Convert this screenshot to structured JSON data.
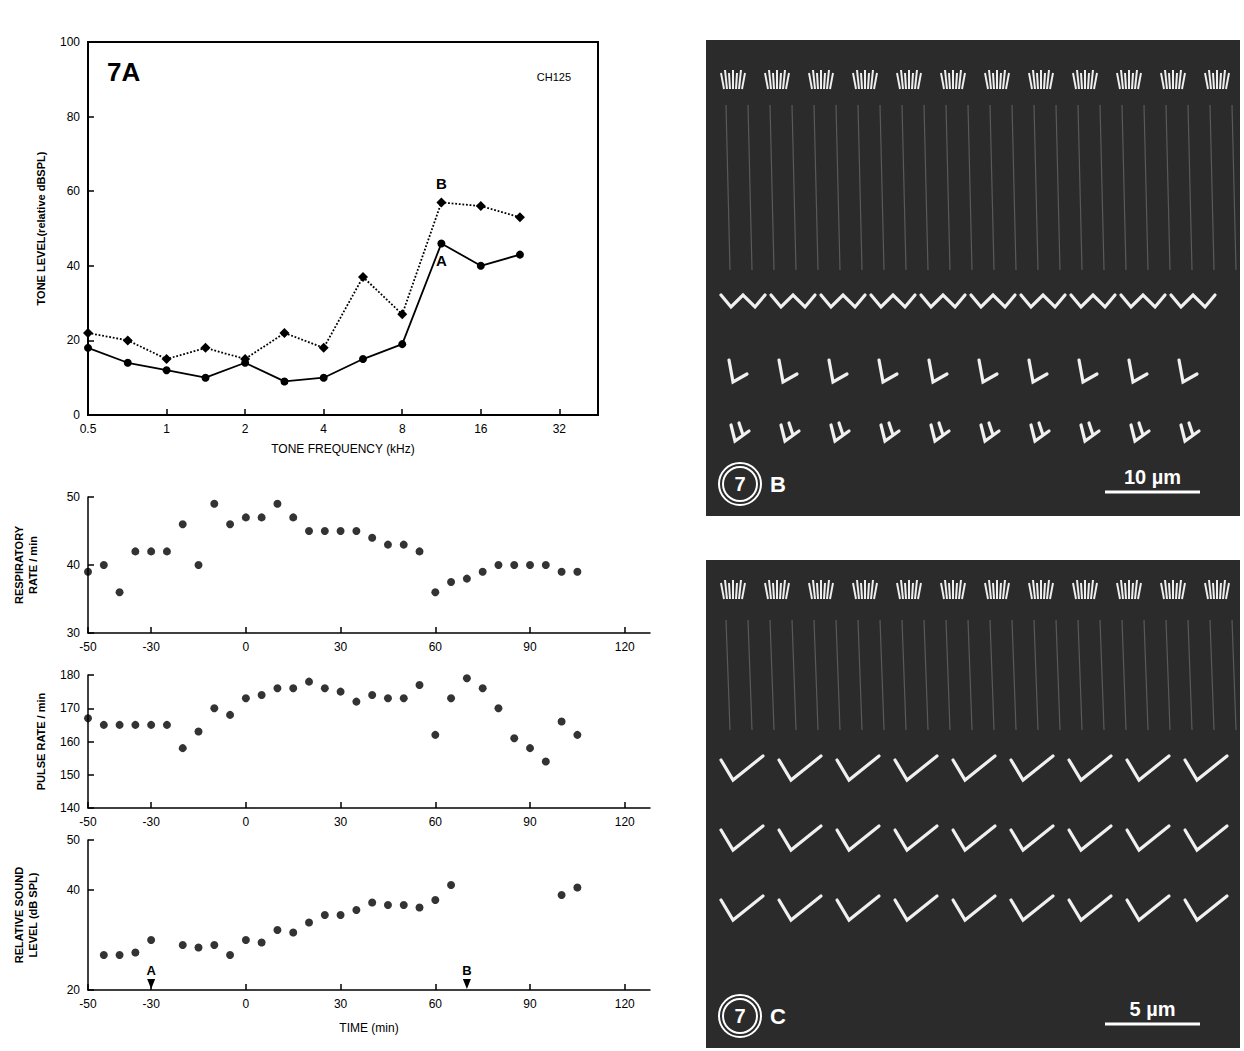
{
  "chart_data": [
    {
      "type": "line",
      "title": "7A",
      "subtitle": "CH125",
      "x_label": "TONE FREQUENCY (kHz)",
      "y_label": "TONE LEVEL(relative dBSPL)",
      "log": "x",
      "grid": false,
      "xlim": [
        0.5,
        45
      ],
      "xticks": [
        0.5,
        1,
        2,
        4,
        8,
        16,
        32
      ],
      "ylim": [
        0,
        100
      ],
      "yticks": [
        0,
        20,
        40,
        60,
        80,
        100
      ],
      "x": [
        0.5,
        0.71,
        1,
        1.41,
        2,
        2.83,
        4,
        5.66,
        8,
        11.3,
        16,
        22.6
      ],
      "series": [
        {
          "name": "A",
          "color": "#000000",
          "marker": "circle",
          "line_style": "solid",
          "values": [
            18,
            14,
            12,
            10,
            14,
            9,
            10,
            15,
            19,
            46,
            40,
            43
          ]
        },
        {
          "name": "B",
          "color": "#000000",
          "marker": "diamond",
          "line_style": "dotted",
          "values": [
            22,
            20,
            15,
            18,
            15,
            22,
            18,
            37,
            27,
            57,
            56,
            53
          ]
        }
      ]
    },
    {
      "type": "scatter",
      "y_label": "RESPIRATORY RATE / min",
      "grid": false,
      "xlim": [
        -50,
        128
      ],
      "xticks": [
        -50,
        -30,
        0,
        30,
        60,
        90,
        120
      ],
      "ylim": [
        30,
        50
      ],
      "yticks": [
        30,
        40,
        50
      ],
      "color": "#000000",
      "marker": "circle",
      "x": [
        -50,
        -45,
        -40,
        -35,
        -30,
        -25,
        -20,
        -15,
        -10,
        -5,
        0,
        5,
        10,
        15,
        20,
        25,
        30,
        35,
        40,
        45,
        50,
        55,
        60,
        65,
        70,
        75,
        80,
        85,
        90,
        95,
        100,
        105
      ],
      "values": [
        39,
        40,
        36,
        42,
        42,
        42,
        46,
        40,
        49,
        46,
        47,
        47,
        49,
        47,
        45,
        45,
        45,
        45,
        44,
        43,
        43,
        42,
        36,
        37.5,
        38,
        39,
        40,
        40,
        40,
        40,
        39,
        39
      ]
    },
    {
      "type": "scatter",
      "y_label": "PULSE RATE / min",
      "grid": false,
      "xlim": [
        -50,
        128
      ],
      "xticks": [
        -50,
        -30,
        0,
        30,
        60,
        90,
        120
      ],
      "ylim": [
        140,
        180
      ],
      "yticks": [
        140,
        150,
        160,
        170,
        180
      ],
      "color": "#000000",
      "marker": "circle",
      "x": [
        -50,
        -45,
        -40,
        -35,
        -30,
        -25,
        -20,
        -15,
        -10,
        -5,
        0,
        5,
        10,
        15,
        20,
        25,
        30,
        35,
        40,
        45,
        50,
        55,
        60,
        65,
        70,
        75,
        80,
        85,
        90,
        95,
        100,
        105
      ],
      "values": [
        167,
        165,
        165,
        165,
        165,
        165,
        158,
        163,
        170,
        168,
        173,
        174,
        176,
        176,
        178,
        176,
        175,
        172,
        174,
        173,
        173,
        177,
        162,
        173,
        179,
        176,
        170,
        161,
        158,
        154,
        166,
        162
      ]
    },
    {
      "type": "scatter",
      "x_label": "TIME (min)",
      "y_label": "RELATIVE SOUND LEVEL (dB SPL)",
      "grid": false,
      "xlim": [
        -50,
        128
      ],
      "xticks": [
        -50,
        -30,
        0,
        30,
        60,
        90,
        120
      ],
      "ylim": [
        20,
        50
      ],
      "yticks": [
        20,
        40,
        50
      ],
      "color": "#000000",
      "marker": "circle",
      "x": [
        -45,
        -40,
        -35,
        -30,
        -20,
        -15,
        -10,
        -5,
        0,
        5,
        10,
        15,
        20,
        25,
        30,
        35,
        40,
        45,
        50,
        55,
        60,
        65,
        100,
        105
      ],
      "values": [
        27,
        27,
        27.5,
        30,
        29,
        28.5,
        29,
        27,
        30,
        29.5,
        32,
        31.5,
        33.5,
        35,
        35,
        36,
        37.5,
        37,
        37,
        36.5,
        38,
        41,
        39,
        40.5
      ],
      "annotations": [
        {
          "text": "A",
          "x": -30
        },
        {
          "text": "B",
          "x": 70
        }
      ]
    }
  ],
  "micrographs": [
    {
      "figure": "7",
      "panel": "B",
      "scale_bar": "10 µm"
    },
    {
      "figure": "7",
      "panel": "C",
      "scale_bar": "5 µm"
    }
  ]
}
